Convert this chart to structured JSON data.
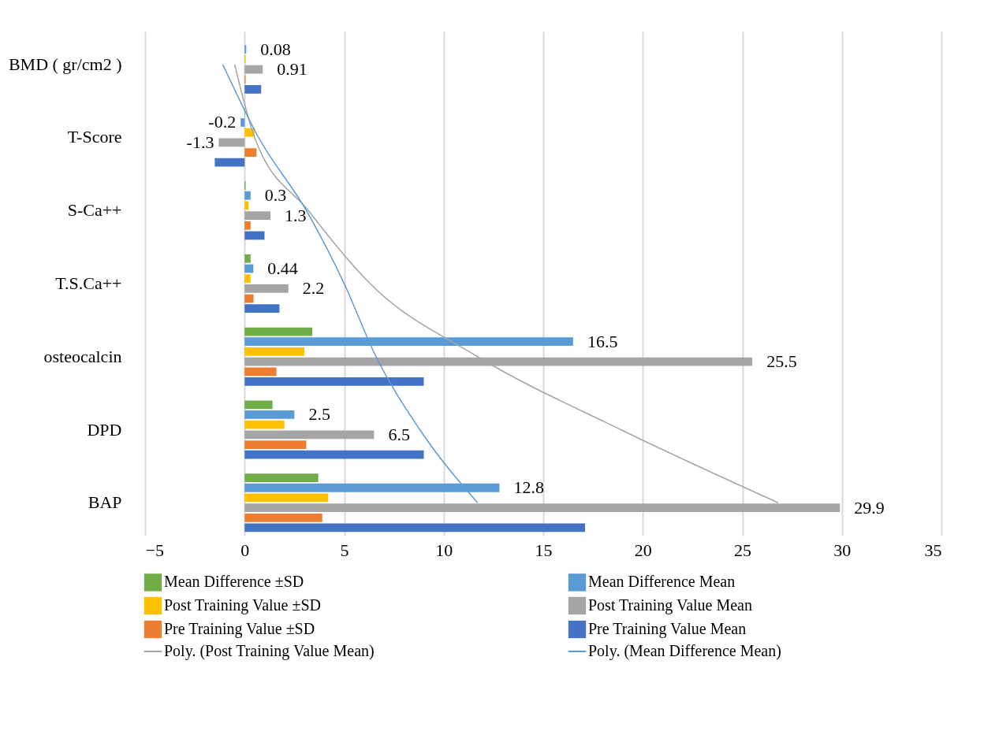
{
  "chart_data": {
    "type": "bar",
    "orientation": "horizontal",
    "categories": [
      "BMD ( gr/cm2 )",
      "T-Score",
      "S-Ca++",
      "T.S.Ca++",
      "osteocalcin",
      "DPD",
      "BAP"
    ],
    "xlim": [
      -5,
      35
    ],
    "xticks": [
      -5,
      0,
      5,
      10,
      15,
      20,
      25,
      30,
      35
    ],
    "grid": "x",
    "legend": "bottom",
    "series": [
      {
        "name": "Mean Difference ±SD",
        "color": "#70ad47",
        "values": [
          null,
          0.02,
          0.05,
          0.3,
          3.4,
          1.4,
          3.7
        ]
      },
      {
        "name": "Mean Difference Mean",
        "color": "#5b9bd5",
        "values": [
          0.08,
          -0.2,
          0.3,
          0.44,
          16.5,
          2.5,
          12.8
        ],
        "value_labels": [
          "0.08",
          "-0.2",
          "0.3",
          "0.44",
          "16.5",
          "2.5",
          "12.8"
        ]
      },
      {
        "name": "Post Training Value ±SD",
        "color": "#ffc000",
        "values": [
          0.05,
          0.5,
          0.2,
          0.3,
          3.0,
          2.0,
          4.2
        ]
      },
      {
        "name": "Post Training Value Mean",
        "color": "#a5a5a5",
        "values": [
          0.91,
          -1.3,
          1.3,
          2.2,
          25.5,
          6.5,
          29.9
        ],
        "value_labels": [
          "0.91",
          "-1.3",
          "1.3",
          "2.2",
          "25.5",
          "6.5",
          "29.9"
        ]
      },
      {
        "name": "Pre Training Value ±SD",
        "color": "#ed7d31",
        "values": [
          0.05,
          0.6,
          0.3,
          0.45,
          1.6,
          3.1,
          3.9
        ]
      },
      {
        "name": "Pre Training Value Mean",
        "color": "#4472c4",
        "values": [
          0.83,
          -1.5,
          1.0,
          1.75,
          9.0,
          9.0,
          17.1
        ]
      },
      {
        "name": "Poly. (Post Training Value Mean)",
        "type": "line",
        "color": "#a5a5a5",
        "line_style": "solid",
        "marker": "none",
        "values": [
          -0.5,
          0.5,
          3.2,
          6.3,
          11.7,
          18.9,
          26.8
        ]
      },
      {
        "name": "Poly. (Mean Difference Mean)",
        "type": "line",
        "color": "#5b9bd5",
        "line_style": "solid",
        "marker": "none",
        "values": [
          -1.1,
          0.7,
          3.1,
          5.0,
          6.6,
          8.8,
          11.7
        ]
      }
    ]
  }
}
